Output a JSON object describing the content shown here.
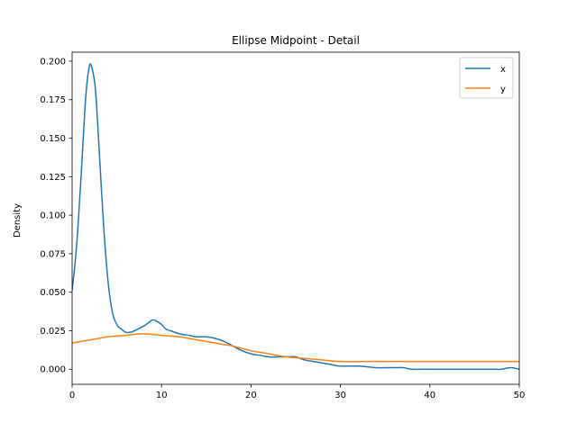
{
  "chart_data": {
    "type": "line",
    "title": "Ellipse Midpoint - Detail",
    "xlabel": "",
    "ylabel": "Density",
    "xlim": [
      0,
      50
    ],
    "ylim": [
      -0.0098,
      0.2058
    ],
    "xticks": [
      0,
      10,
      20,
      30,
      40,
      50
    ],
    "yticks": [
      0.0,
      0.025,
      0.05,
      0.075,
      0.1,
      0.125,
      0.15,
      0.175,
      0.2
    ],
    "xtick_labels": [
      "0",
      "10",
      "20",
      "30",
      "40",
      "50"
    ],
    "ytick_labels": [
      "0.000",
      "0.025",
      "0.050",
      "0.075",
      "0.100",
      "0.125",
      "0.150",
      "0.175",
      "0.200"
    ],
    "grid": false,
    "legend_position": "top-right",
    "series": [
      {
        "name": "x",
        "color": "#1f77b4",
        "points": [
          [
            0,
            0.051
          ],
          [
            0.5,
            0.08
          ],
          [
            1.0,
            0.125
          ],
          [
            1.5,
            0.175
          ],
          [
            1.9,
            0.196
          ],
          [
            2.2,
            0.196
          ],
          [
            2.6,
            0.182
          ],
          [
            3.0,
            0.145
          ],
          [
            3.5,
            0.095
          ],
          [
            4.0,
            0.058
          ],
          [
            4.5,
            0.037
          ],
          [
            5.0,
            0.029
          ],
          [
            5.5,
            0.026
          ],
          [
            6.0,
            0.024
          ],
          [
            6.5,
            0.024
          ],
          [
            7.0,
            0.025
          ],
          [
            8.0,
            0.028
          ],
          [
            8.5,
            0.03
          ],
          [
            9.0,
            0.032
          ],
          [
            9.5,
            0.031
          ],
          [
            10.0,
            0.029
          ],
          [
            10.5,
            0.026
          ],
          [
            11.0,
            0.025
          ],
          [
            12.0,
            0.023
          ],
          [
            13.0,
            0.022
          ],
          [
            14.0,
            0.021
          ],
          [
            15.0,
            0.021
          ],
          [
            16.0,
            0.02
          ],
          [
            17.0,
            0.018
          ],
          [
            18.0,
            0.015
          ],
          [
            19.0,
            0.012
          ],
          [
            20.0,
            0.01
          ],
          [
            21.0,
            0.009
          ],
          [
            22.0,
            0.008
          ],
          [
            23.0,
            0.008
          ],
          [
            24.0,
            0.008
          ],
          [
            25.0,
            0.008
          ],
          [
            26.0,
            0.006
          ],
          [
            27.0,
            0.005
          ],
          [
            28.0,
            0.004
          ],
          [
            29.0,
            0.003
          ],
          [
            30.0,
            0.002
          ],
          [
            32.0,
            0.002
          ],
          [
            34.0,
            0.001
          ],
          [
            35.0,
            0.001
          ],
          [
            36.0,
            0.001
          ],
          [
            37.0,
            0.001
          ],
          [
            38.0,
            0.0
          ],
          [
            40.0,
            0.0
          ],
          [
            42.0,
            0.0
          ],
          [
            44.0,
            0.0
          ],
          [
            46.0,
            0.0
          ],
          [
            47.0,
            0.0
          ],
          [
            48.0,
            0.0
          ],
          [
            49.0,
            0.001
          ],
          [
            50.0,
            0.0
          ]
        ]
      },
      {
        "name": "y",
        "color": "#ff7f0e",
        "points": [
          [
            0,
            0.017
          ],
          [
            2,
            0.019
          ],
          [
            3,
            0.02
          ],
          [
            4,
            0.021
          ],
          [
            6,
            0.022
          ],
          [
            8,
            0.023
          ],
          [
            10,
            0.022
          ],
          [
            12,
            0.021
          ],
          [
            14,
            0.019
          ],
          [
            16,
            0.017
          ],
          [
            18,
            0.015
          ],
          [
            20,
            0.012
          ],
          [
            22,
            0.01
          ],
          [
            24,
            0.008
          ],
          [
            26,
            0.007
          ],
          [
            28,
            0.006
          ],
          [
            30,
            0.005
          ],
          [
            33,
            0.005
          ],
          [
            36,
            0.005
          ],
          [
            40,
            0.005
          ],
          [
            45,
            0.005
          ],
          [
            50,
            0.005
          ]
        ]
      }
    ]
  }
}
